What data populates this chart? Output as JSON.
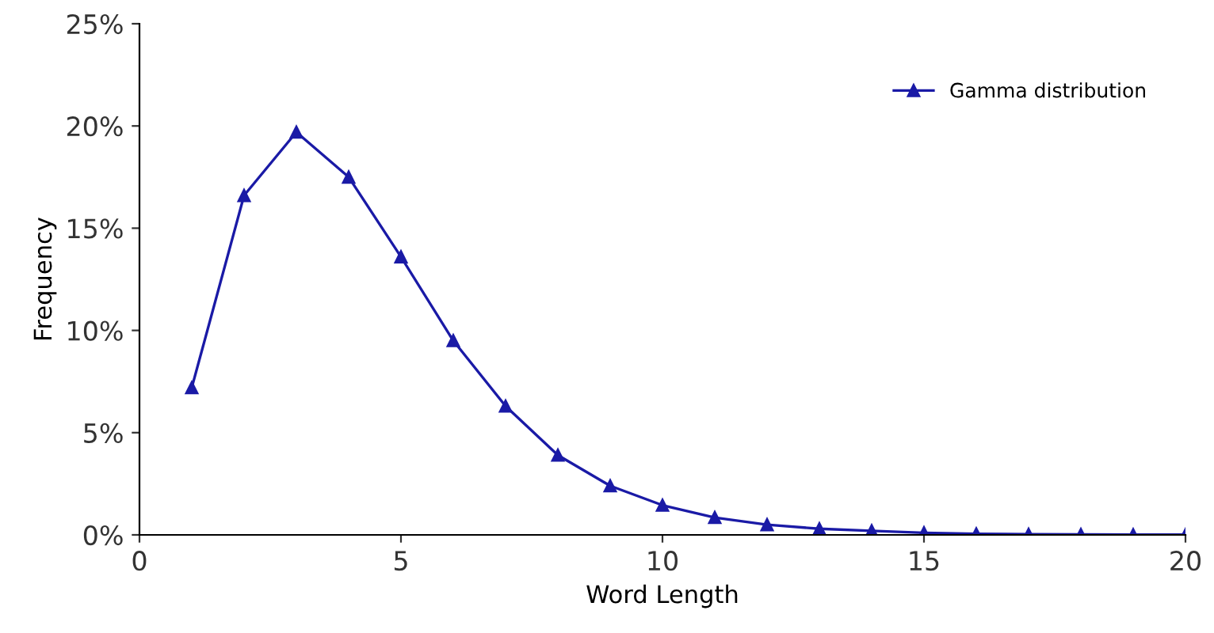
{
  "chart_data": {
    "type": "line",
    "xlabel": "Word Length",
    "ylabel": "Frequency",
    "x": [
      1,
      2,
      3,
      4,
      5,
      6,
      7,
      8,
      9,
      10,
      11,
      12,
      13,
      14,
      15,
      16,
      17,
      18,
      19,
      20
    ],
    "series": [
      {
        "name": "Gamma distribution",
        "color": "#1a1aa6",
        "values": [
          7.2,
          16.6,
          19.7,
          17.5,
          13.6,
          9.5,
          6.3,
          3.9,
          2.4,
          1.45,
          0.85,
          0.5,
          0.3,
          0.2,
          0.1,
          0.05,
          0.03,
          0.02,
          0.01,
          0.01
        ]
      }
    ],
    "xlim": [
      0,
      20
    ],
    "xticks": [
      0,
      5,
      10,
      15,
      20
    ],
    "ylim": [
      0,
      25
    ],
    "yticks": [
      {
        "value": 0,
        "label": "0%"
      },
      {
        "value": 5,
        "label": "5%"
      },
      {
        "value": 10,
        "label": "10%"
      },
      {
        "value": 15,
        "label": "15%"
      },
      {
        "value": 20,
        "label": "20%"
      },
      {
        "value": 25,
        "label": "25%"
      }
    ],
    "marker": "triangle",
    "line_style": "solid",
    "grid": false,
    "legend": "top right"
  }
}
